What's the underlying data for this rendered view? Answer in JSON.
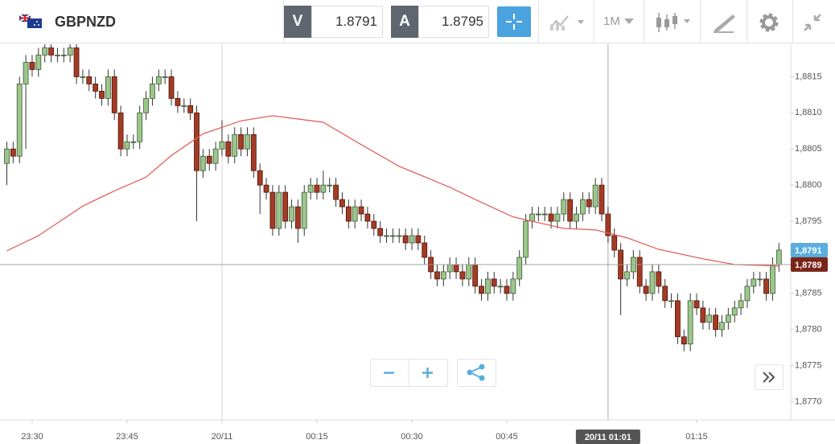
{
  "toolbar": {
    "symbol": "GBPNZD",
    "sell": {
      "label": "V",
      "price": 1.8791
    },
    "buy": {
      "label": "A",
      "price": 1.8795
    },
    "timeframe": "1M"
  },
  "chart_data": {
    "type": "candlestick",
    "open": [
      1.8803,
      1.8805,
      1.8804,
      1.8814,
      1.8817,
      1.8816,
      1.8818,
      1.8819,
      1.8818,
      1.8818,
      1.8818,
      1.8819,
      1.8815,
      1.8815,
      1.8814,
      1.8813,
      1.8812,
      1.8815,
      1.881,
      1.8805,
      1.8806,
      1.8806,
      1.881,
      1.8812,
      1.8814,
      1.8815,
      1.8815,
      1.8812,
      1.8811,
      1.8811,
      1.881,
      1.8802,
      1.8804,
      1.8803,
      1.8805,
      1.8806,
      1.8804,
      1.8807,
      1.8805,
      1.8807,
      1.8802,
      1.88,
      1.8799,
      1.8794,
      1.8799,
      1.8795,
      1.8797,
      1.8794,
      1.8799,
      1.88,
      1.8799,
      1.88,
      1.88,
      1.8798,
      1.8797,
      1.8795,
      1.8797,
      1.8796,
      1.8795,
      1.8794,
      1.8793,
      1.8793,
      1.8793,
      1.8793,
      1.8792,
      1.8793,
      1.8792,
      1.879,
      1.8788,
      1.8787,
      1.8788,
      1.8789,
      1.8788,
      1.8787,
      1.8789,
      1.8786,
      1.8785,
      1.8787,
      1.8786,
      1.8786,
      1.8785,
      1.8787,
      1.879,
      1.8795,
      1.8796,
      1.8796,
      1.8796,
      1.8795,
      1.8796,
      1.8798,
      1.8795,
      1.8796,
      1.8798,
      1.8797,
      1.88,
      1.8796,
      1.8793,
      1.8791,
      1.8787,
      1.8788,
      1.879,
      1.8786,
      1.8785,
      1.8788,
      1.8786,
      1.8784,
      1.8784,
      1.8779,
      1.8778,
      1.8784,
      1.8783,
      1.8781,
      1.8782,
      1.878,
      1.8781,
      1.8782,
      1.8783,
      1.8784,
      1.8786,
      1.8787,
      1.8787,
      1.8785,
      1.8789
    ],
    "high": [
      1.8806,
      1.8806,
      1.8815,
      1.8818,
      1.8818,
      1.8819,
      1.882,
      1.882,
      1.8819,
      1.8819,
      1.882,
      1.882,
      1.8816,
      1.8816,
      1.8815,
      1.8814,
      1.8816,
      1.8816,
      1.8811,
      1.8807,
      1.8807,
      1.8811,
      1.8813,
      1.8815,
      1.8816,
      1.8816,
      1.8816,
      1.8813,
      1.8812,
      1.8812,
      1.8811,
      1.8805,
      1.8805,
      1.8806,
      1.8809,
      1.8807,
      1.8808,
      1.8808,
      1.8808,
      1.8808,
      1.8803,
      1.8801,
      1.88,
      1.88,
      1.88,
      1.8798,
      1.8798,
      1.88,
      1.8801,
      1.8801,
      1.8802,
      1.8801,
      1.8801,
      1.8799,
      1.8798,
      1.8798,
      1.8798,
      1.8797,
      1.8796,
      1.8795,
      1.8794,
      1.8794,
      1.8794,
      1.8794,
      1.8794,
      1.8794,
      1.8793,
      1.8791,
      1.8789,
      1.8789,
      1.879,
      1.879,
      1.8789,
      1.879,
      1.879,
      1.8787,
      1.8788,
      1.8788,
      1.8787,
      1.8787,
      1.8788,
      1.8791,
      1.8796,
      1.8797,
      1.8797,
      1.8797,
      1.8797,
      1.8797,
      1.8799,
      1.8799,
      1.8797,
      1.8799,
      1.8799,
      1.8801,
      1.8801,
      1.8797,
      1.8794,
      1.8792,
      1.8789,
      1.8791,
      1.8791,
      1.8787,
      1.8789,
      1.8789,
      1.8787,
      1.8785,
      1.8785,
      1.878,
      1.8785,
      1.8785,
      1.8784,
      1.8783,
      1.8783,
      1.8782,
      1.8783,
      1.8784,
      1.8785,
      1.8787,
      1.8788,
      1.8788,
      1.8788,
      1.879,
      1.8792
    ],
    "low": [
      1.88,
      1.8803,
      1.8803,
      1.8805,
      1.8815,
      1.8815,
      1.8817,
      1.8817,
      1.8817,
      1.8817,
      1.8817,
      1.8814,
      1.8814,
      1.8813,
      1.8812,
      1.8811,
      1.8811,
      1.8809,
      1.8804,
      1.8804,
      1.8805,
      1.8805,
      1.8809,
      1.8811,
      1.8813,
      1.8814,
      1.8811,
      1.881,
      1.881,
      1.8809,
      1.8795,
      1.8801,
      1.8802,
      1.8802,
      1.8804,
      1.8803,
      1.8803,
      1.8804,
      1.8804,
      1.8801,
      1.8796,
      1.8798,
      1.8793,
      1.8793,
      1.8794,
      1.8794,
      1.8792,
      1.8793,
      1.8798,
      1.8798,
      1.8798,
      1.8799,
      1.8797,
      1.8796,
      1.8794,
      1.8794,
      1.8795,
      1.8794,
      1.8793,
      1.8792,
      1.8792,
      1.8792,
      1.8792,
      1.8791,
      1.8791,
      1.8791,
      1.8789,
      1.8787,
      1.8786,
      1.8786,
      1.8787,
      1.8787,
      1.8786,
      1.8786,
      1.8785,
      1.8784,
      1.8784,
      1.8785,
      1.8785,
      1.8784,
      1.8784,
      1.8786,
      1.8789,
      1.8794,
      1.8795,
      1.8795,
      1.8794,
      1.8794,
      1.8795,
      1.8794,
      1.8794,
      1.8795,
      1.8796,
      1.8796,
      1.8795,
      1.8792,
      1.879,
      1.8782,
      1.8786,
      1.8787,
      1.8785,
      1.8784,
      1.8784,
      1.8785,
      1.8783,
      1.8783,
      1.8778,
      1.8777,
      1.8777,
      1.8782,
      1.878,
      1.878,
      1.8779,
      1.8779,
      1.878,
      1.8781,
      1.8782,
      1.8783,
      1.8785,
      1.8786,
      1.8784,
      1.8784,
      1.8788
    ],
    "close": [
      1.8805,
      1.8804,
      1.8814,
      1.8817,
      1.8816,
      1.8818,
      1.8819,
      1.8818,
      1.8818,
      1.8818,
      1.8819,
      1.8815,
      1.8815,
      1.8814,
      1.8813,
      1.8812,
      1.8815,
      1.881,
      1.8805,
      1.8806,
      1.8806,
      1.881,
      1.8812,
      1.8814,
      1.8815,
      1.8815,
      1.8812,
      1.8811,
      1.8811,
      1.881,
      1.8802,
      1.8804,
      1.8803,
      1.8805,
      1.8806,
      1.8804,
      1.8807,
      1.8805,
      1.8807,
      1.8802,
      1.88,
      1.8799,
      1.8794,
      1.8799,
      1.8795,
      1.8797,
      1.8794,
      1.8799,
      1.88,
      1.8799,
      1.88,
      1.88,
      1.8798,
      1.8797,
      1.8795,
      1.8797,
      1.8796,
      1.8795,
      1.8794,
      1.8793,
      1.8793,
      1.8793,
      1.8793,
      1.8792,
      1.8793,
      1.8792,
      1.879,
      1.8788,
      1.8787,
      1.8788,
      1.8789,
      1.8788,
      1.8787,
      1.8789,
      1.8786,
      1.8785,
      1.8787,
      1.8786,
      1.8786,
      1.8785,
      1.8787,
      1.879,
      1.8795,
      1.8796,
      1.8796,
      1.8796,
      1.8795,
      1.8796,
      1.8798,
      1.8795,
      1.8796,
      1.8798,
      1.8797,
      1.88,
      1.8796,
      1.8793,
      1.8791,
      1.8787,
      1.8788,
      1.879,
      1.8786,
      1.8785,
      1.8788,
      1.8786,
      1.8784,
      1.8784,
      1.8779,
      1.8778,
      1.8784,
      1.8783,
      1.8781,
      1.8782,
      1.878,
      1.8781,
      1.8782,
      1.8783,
      1.8784,
      1.8786,
      1.8787,
      1.8787,
      1.8785,
      1.8789,
      1.8791
    ],
    "up_color": "#9cc68c",
    "down_color": "#a33b25",
    "overlay": {
      "color": "#e2605a",
      "x": [
        0,
        5,
        12,
        17,
        22,
        26,
        31,
        37,
        42,
        50,
        56,
        62,
        70,
        75,
        80,
        88,
        93,
        98,
        103,
        110,
        115,
        122
      ],
      "values": [
        1.87909,
        1.8793,
        1.87971,
        1.87992,
        1.88011,
        1.88041,
        1.88071,
        1.88089,
        1.88096,
        1.88087,
        1.88056,
        1.88026,
        1.87997,
        1.87976,
        1.87956,
        1.8794,
        1.87938,
        1.87927,
        1.87911,
        1.87898,
        1.8789,
        1.87888
      ]
    },
    "ylim": [
      1.87675,
      1.88195
    ],
    "yticks": [
      {
        "value": 1.877,
        "label": "1,8770"
      },
      {
        "value": 1.8775,
        "label": "1,8775"
      },
      {
        "value": 1.878,
        "label": "1,8780"
      },
      {
        "value": 1.8785,
        "label": "1,8785"
      },
      {
        "value": 1.879,
        "label": "1,8790"
      },
      {
        "value": 1.8795,
        "label": "1,8795"
      },
      {
        "value": 1.88,
        "label": "1,8800"
      },
      {
        "value": 1.8805,
        "label": "1,8805"
      },
      {
        "value": 1.881,
        "label": "1,8810"
      },
      {
        "value": 1.8815,
        "label": "1,8815"
      }
    ],
    "xlim": [
      -1.08,
      123.87
    ],
    "xticks": [
      {
        "value": 4,
        "label": "23:30"
      },
      {
        "value": 19,
        "label": "23:45"
      },
      {
        "value": 34,
        "label": "20/11"
      },
      {
        "value": 49,
        "label": "00:15"
      },
      {
        "value": 64,
        "label": "00:30"
      },
      {
        "value": 79,
        "label": "00:45"
      },
      {
        "value": 109,
        "label": "01:15"
      }
    ],
    "crosshair": {
      "x": 95,
      "label": "20/11 01:01"
    },
    "price_markers": [
      {
        "value": 1.8791,
        "label": "1,8791",
        "color": "#5aaede"
      },
      {
        "value": 1.8789,
        "label": "1,8789",
        "color": "#7a2418"
      }
    ]
  }
}
